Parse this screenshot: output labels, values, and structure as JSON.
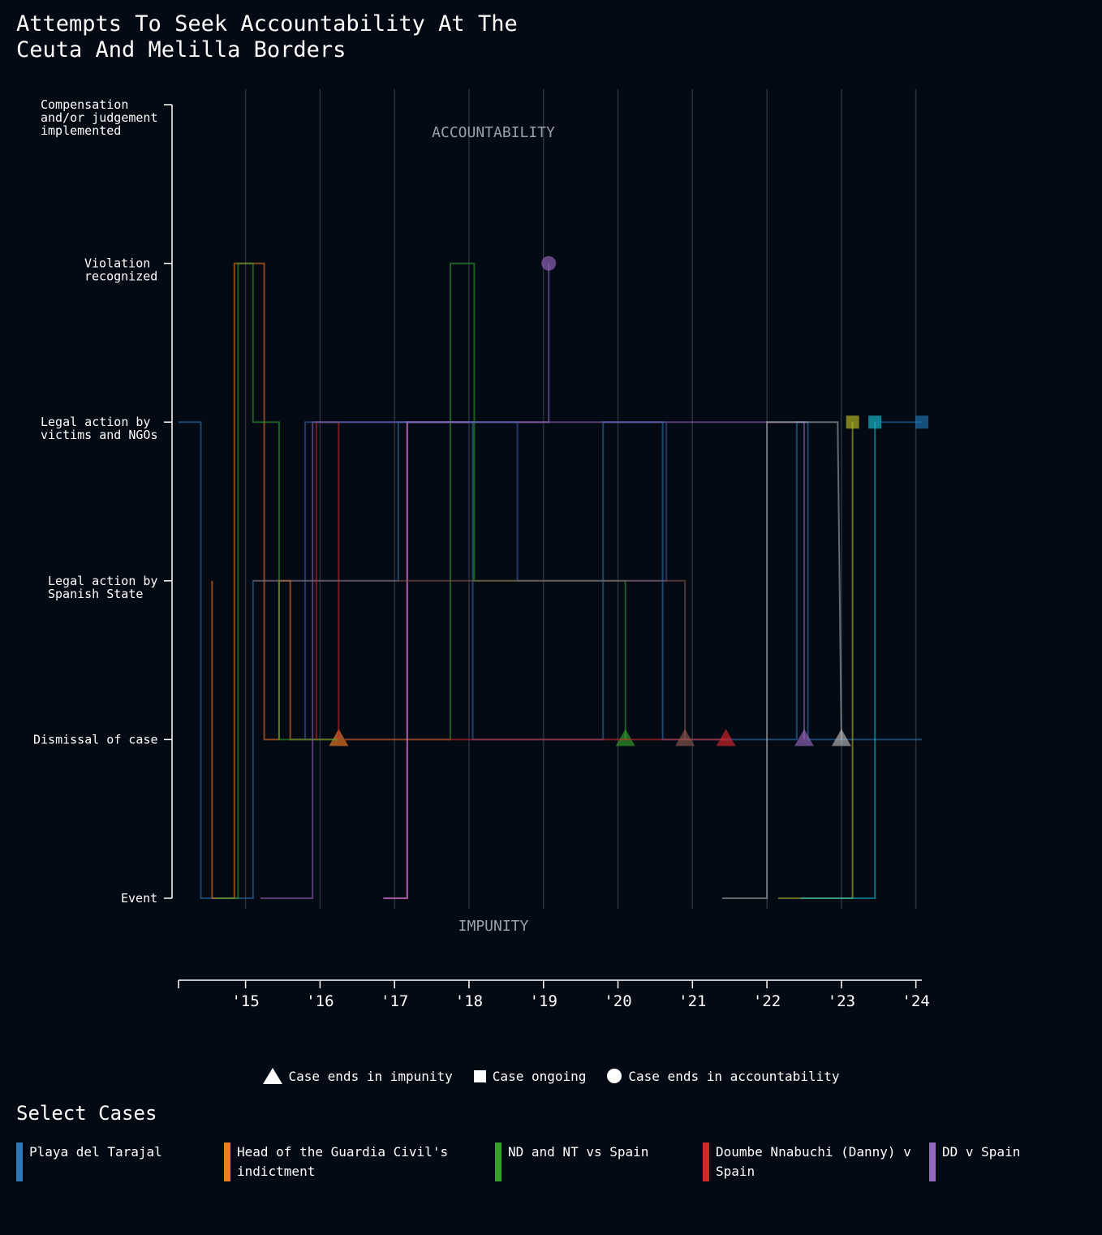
{
  "title": "Attempts To Seek Accountability At The\nCeuta And Melilla Borders",
  "legend": {
    "impunity": "Case ends in impunity",
    "ongoing": "Case ongoing",
    "accountability": "Case ends in accountability"
  },
  "select_cases": {
    "title": "Select Cases",
    "cases": [
      {
        "label": "Playa del Tarajal",
        "color": "#2e78b8"
      },
      {
        "label": "Head of the Guardia Civil's indictment",
        "color": "#f07c24"
      },
      {
        "label": "ND and NT vs Spain",
        "color": "#35a02c"
      },
      {
        "label": "Doumbe Nnabuchi (Danny) v Spain",
        "color": "#d7262a"
      },
      {
        "label": "DD v Spain",
        "color": "#9567bd"
      }
    ]
  },
  "chart_data": {
    "type": "line",
    "title": "Attempts To Seek Accountability At The Ceuta And Melilla Borders",
    "top_annotation": "ACCOUNTABILITY",
    "bottom_annotation": "IMPUNITY",
    "y_levels": [
      "Event",
      "Dismissal of case",
      "Legal action by Spanish State",
      "Legal action by victims and NGOs",
      "Violation recognized",
      "Compensation and/or judgement implemented"
    ],
    "y_level_labels": [
      "Event",
      "Dismissal of case",
      "Legal action by\nSpanish State",
      "Legal action by\nvictims and NGOs",
      "Violation\nrecognized",
      "Compensation\nand/or judgement\nimplemented"
    ],
    "x_ticks": [
      "'15",
      "'16",
      "'17",
      "'18",
      "'19",
      "'20",
      "'21",
      "'22",
      "'23",
      "'24"
    ],
    "x_range": [
      2014.1,
      2024.08
    ],
    "grid": true,
    "series": [
      {
        "color": "#2e78b8",
        "x": [
          2014.1,
          2014.4,
          2014.4,
          2015.1,
          2015.1,
          2017.05,
          2017.05,
          2018.05,
          2018.05,
          2019.8,
          2019.8,
          2020.6,
          2020.6,
          2022.4,
          2022.4,
          2022.55,
          2022.55,
          2024.08
        ],
        "y": [
          3,
          3,
          0,
          0,
          2,
          2,
          3,
          3,
          1,
          1,
          3,
          3,
          1,
          1,
          3,
          3,
          1,
          1
        ],
        "end": "none"
      },
      {
        "color": "#f07c24",
        "x": [
          2014.55,
          2014.55,
          2014.6,
          2014.6,
          2014.85,
          2014.85,
          2015.25,
          2015.25,
          2015.45,
          2015.45,
          2015.6,
          2015.6,
          2016.25
        ],
        "y": [
          2,
          0,
          0,
          0,
          0,
          4,
          4,
          1,
          1,
          2,
          2,
          1,
          1
        ],
        "end": "impunity"
      },
      {
        "color": "#35a02c",
        "x": [
          2014.6,
          2014.9,
          2014.9,
          2015.1,
          2015.1,
          2015.2,
          2015.2,
          2015.45,
          2015.45,
          2017.75,
          2017.75,
          2018.07,
          2018.07,
          2020.1,
          2020.1
        ],
        "y": [
          0,
          0,
          4,
          4,
          3,
          3,
          3,
          3,
          1,
          1,
          4,
          4,
          2,
          2,
          1
        ],
        "end": "impunity"
      },
      {
        "color": "#d7262a",
        "x": [
          2015.95,
          2015.95,
          2016.25,
          2016.25,
          2021.45
        ],
        "y": [
          1,
          3,
          3,
          1,
          1
        ],
        "end": "impunity"
      },
      {
        "color": "#9567bd",
        "x": [
          2015.2,
          2015.9,
          2015.9,
          2017.05,
          2017.05,
          2019.07,
          2019.07
        ],
        "y": [
          0,
          0,
          3,
          3,
          3,
          3,
          4
        ],
        "end": "accountability"
      },
      {
        "color": "#9567bd",
        "x": [
          2016.85,
          2017.17,
          2017.17,
          2022.5,
          2022.5
        ],
        "y": [
          0,
          0,
          3,
          3,
          1
        ],
        "end": "impunity"
      },
      {
        "color": "#e377c2",
        "x": [
          2016.85,
          2017.17,
          2017.17,
          2018.0
        ],
        "y": [
          0,
          0,
          3,
          3
        ],
        "end": "none"
      },
      {
        "color": "#3f5ea8",
        "x": [
          2015.8,
          2015.8,
          2016.25,
          2018.65,
          2018.65,
          2020.65,
          2020.65
        ],
        "y": [
          1,
          3,
          3,
          3,
          2,
          2,
          3
        ],
        "end": "none"
      },
      {
        "color": "#8c564b",
        "x": [
          2015.1,
          2020.9,
          2020.9
        ],
        "y": [
          2,
          2,
          1
        ],
        "end": "impunity"
      },
      {
        "color": "#b8b8b8",
        "x": [
          2021.4,
          2022.0,
          2022.0,
          2022.95,
          2023.0
        ],
        "y": [
          0,
          0,
          3,
          3,
          1
        ],
        "end": "impunity"
      },
      {
        "color": "#bcbd22",
        "x": [
          2022.15,
          2023.15,
          2023.15
        ],
        "y": [
          0,
          0,
          3
        ],
        "end": "ongoing"
      },
      {
        "color": "#17becf",
        "x": [
          2022.45,
          2023.45,
          2023.45
        ],
        "y": [
          0,
          0,
          3
        ],
        "end": "ongoing"
      },
      {
        "color": "#1f77b4",
        "x": [
          2023.45,
          2024.08
        ],
        "y": [
          3,
          3
        ],
        "end": "ongoing"
      }
    ]
  }
}
